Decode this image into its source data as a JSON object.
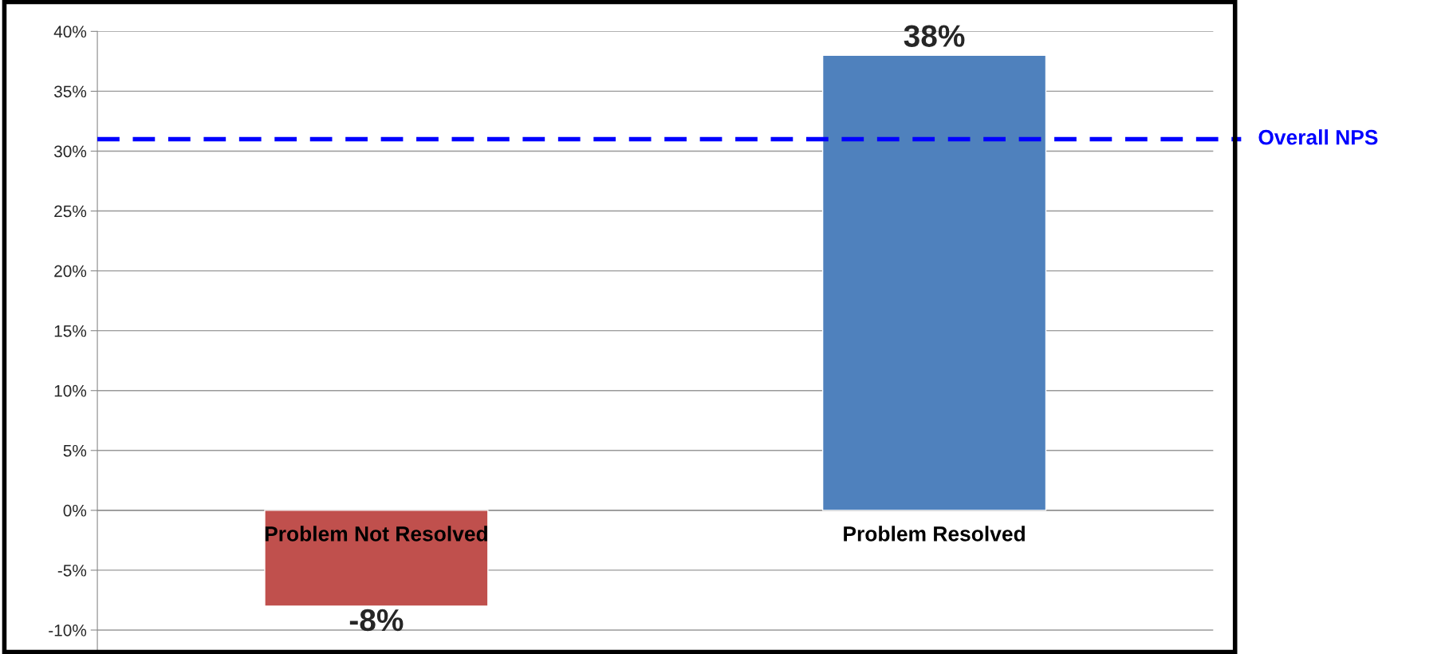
{
  "chart_data": {
    "type": "bar",
    "categories": [
      "Problem Not Resolved",
      "Problem Resolved"
    ],
    "values": [
      -8,
      38
    ],
    "colors": [
      "#c0504d",
      "#4f81bd"
    ],
    "value_labels": [
      "-8%",
      "38%"
    ],
    "ylim": [
      -12,
      40
    ],
    "yticks": [
      {
        "value": -10,
        "label": "-10%"
      },
      {
        "value": -5,
        "label": "-5%"
      },
      {
        "value": 0,
        "label": "0%"
      },
      {
        "value": 5,
        "label": "5%"
      },
      {
        "value": 10,
        "label": "10%"
      },
      {
        "value": 15,
        "label": "15%"
      },
      {
        "value": 20,
        "label": "20%"
      },
      {
        "value": 25,
        "label": "25%"
      },
      {
        "value": 30,
        "label": "30%"
      },
      {
        "value": 35,
        "label": "35%"
      },
      {
        "value": 40,
        "label": "40%"
      }
    ],
    "ref_lines": [
      {
        "axis": "y",
        "value": 31,
        "label": "Overall NPS",
        "color": "#0000ff",
        "line_style": "dashed"
      }
    ],
    "grid": "y",
    "legend": false
  }
}
